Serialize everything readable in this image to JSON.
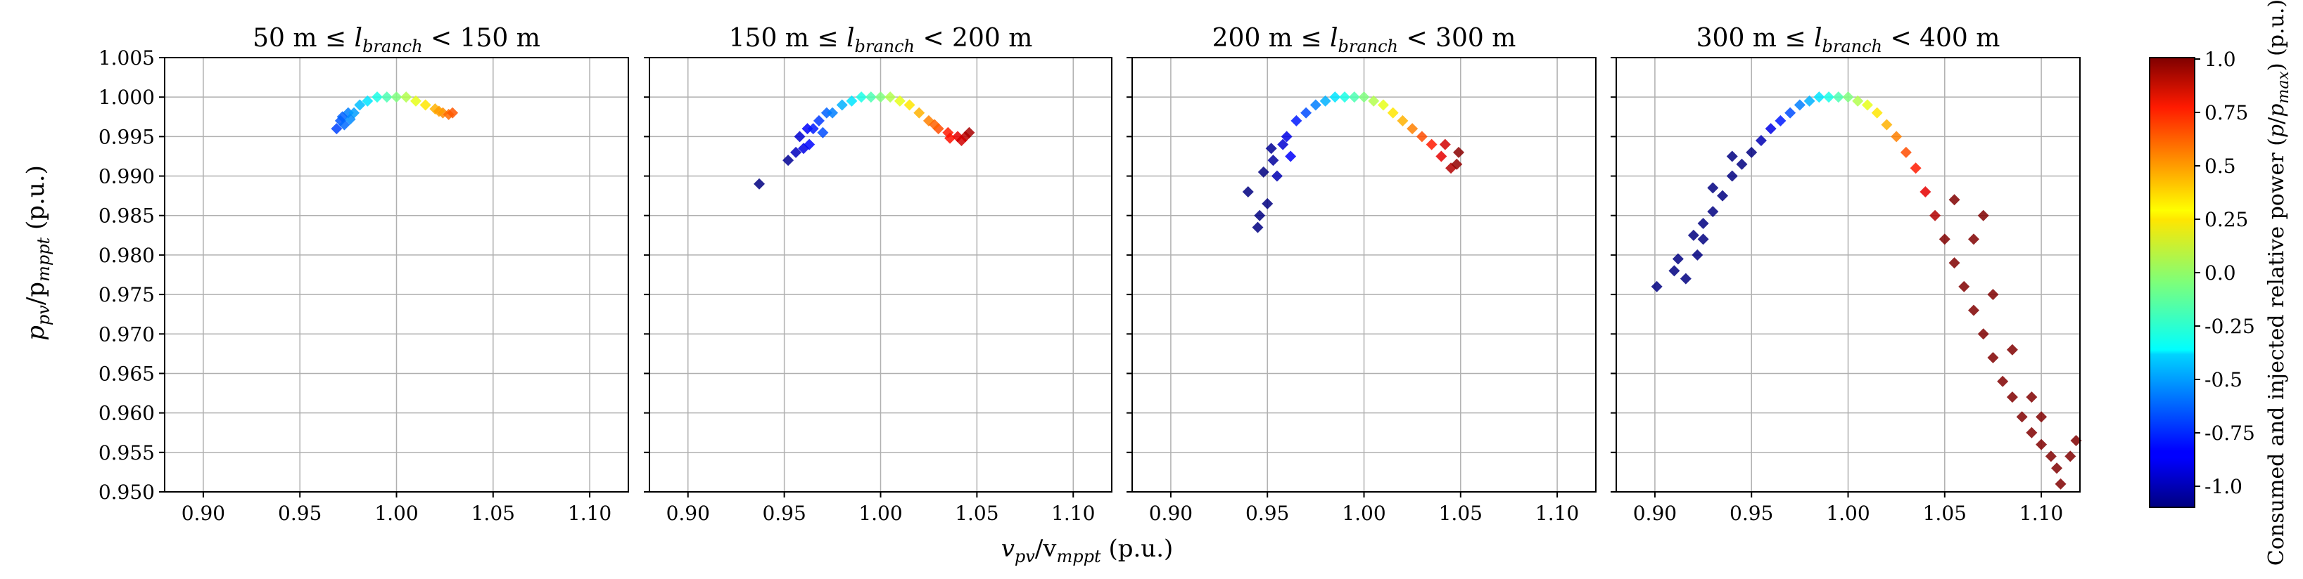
{
  "chart_data": {
    "type": "scatter",
    "xlabel": "v_pv/v_mppt (p.u.)",
    "ylabel": "p_pv/p_mppt (p.u.)",
    "xlim": [
      0.88,
      1.12
    ],
    "ylim": [
      0.95,
      1.005
    ],
    "x_ticks": [
      "0.90",
      "0.95",
      "1.00",
      "1.05",
      "1.10"
    ],
    "x_tick_values": [
      0.9,
      0.95,
      1.0,
      1.05,
      1.1
    ],
    "y_ticks": [
      "1.005",
      "1.000",
      "0.995",
      "0.990",
      "0.985",
      "0.980",
      "0.975",
      "0.970",
      "0.965",
      "0.960",
      "0.955",
      "0.950"
    ],
    "y_tick_values": [
      1.005,
      1.0,
      0.995,
      0.99,
      0.985,
      0.98,
      0.975,
      0.97,
      0.965,
      0.96,
      0.955,
      0.95
    ],
    "grid": true,
    "marker": "diamond",
    "panels": [
      {
        "title": "50 m ≤ l_branch < 150 m",
        "title_pre": "50 m ≤ ",
        "title_post": " < 150 m",
        "points": [
          [
            0.969,
            0.996
          ],
          [
            0.971,
            0.997
          ],
          [
            0.973,
            0.9965
          ],
          [
            0.975,
            0.998
          ],
          [
            0.978,
            0.998
          ],
          [
            0.981,
            0.999
          ],
          [
            0.985,
            0.9995
          ],
          [
            0.99,
            1.0
          ],
          [
            0.995,
            1.0
          ],
          [
            1.0,
            1.0
          ],
          [
            1.005,
            1.0
          ],
          [
            1.01,
            0.9995
          ],
          [
            1.015,
            0.999
          ],
          [
            1.02,
            0.9985
          ],
          [
            1.024,
            0.998
          ],
          [
            1.027,
            0.9978
          ],
          [
            1.029,
            0.998
          ],
          [
            0.972,
            0.9975
          ],
          [
            0.976,
            0.9972
          ],
          [
            1.022,
            0.9982
          ]
        ]
      },
      {
        "title": "150 m ≤ l_branch < 200 m",
        "title_pre": "150 m ≤ ",
        "title_post": " < 200 m",
        "points": [
          [
            0.937,
            0.989
          ],
          [
            0.952,
            0.992
          ],
          [
            0.956,
            0.993
          ],
          [
            0.958,
            0.995
          ],
          [
            0.96,
            0.9935
          ],
          [
            0.962,
            0.996
          ],
          [
            0.965,
            0.996
          ],
          [
            0.968,
            0.997
          ],
          [
            0.972,
            0.998
          ],
          [
            0.975,
            0.998
          ],
          [
            0.98,
            0.999
          ],
          [
            0.985,
            0.9995
          ],
          [
            0.99,
            1.0
          ],
          [
            0.995,
            1.0
          ],
          [
            1.0,
            1.0
          ],
          [
            1.005,
            1.0
          ],
          [
            1.01,
            0.9995
          ],
          [
            1.015,
            0.999
          ],
          [
            1.02,
            0.998
          ],
          [
            1.025,
            0.997
          ],
          [
            1.03,
            0.996
          ],
          [
            1.035,
            0.9955
          ],
          [
            1.04,
            0.995
          ],
          [
            1.044,
            0.995
          ],
          [
            1.046,
            0.9955
          ],
          [
            0.963,
            0.994
          ],
          [
            0.97,
            0.9955
          ],
          [
            1.028,
            0.9965
          ],
          [
            1.036,
            0.9948
          ],
          [
            1.042,
            0.9945
          ]
        ]
      },
      {
        "title": "200 m ≤ l_branch < 300 m",
        "title_pre": "200 m ≤ ",
        "title_post": " < 300 m",
        "points": [
          [
            0.94,
            0.988
          ],
          [
            0.945,
            0.9835
          ],
          [
            0.946,
            0.985
          ],
          [
            0.948,
            0.9905
          ],
          [
            0.95,
            0.9865
          ],
          [
            0.953,
            0.992
          ],
          [
            0.955,
            0.99
          ],
          [
            0.958,
            0.994
          ],
          [
            0.96,
            0.995
          ],
          [
            0.965,
            0.997
          ],
          [
            0.97,
            0.998
          ],
          [
            0.975,
            0.999
          ],
          [
            0.98,
            0.9995
          ],
          [
            0.985,
            1.0
          ],
          [
            0.99,
            1.0
          ],
          [
            0.995,
            1.0
          ],
          [
            1.0,
            1.0
          ],
          [
            1.005,
            0.9995
          ],
          [
            1.01,
            0.999
          ],
          [
            1.015,
            0.998
          ],
          [
            1.02,
            0.997
          ],
          [
            1.025,
            0.996
          ],
          [
            1.03,
            0.995
          ],
          [
            1.035,
            0.994
          ],
          [
            1.04,
            0.9925
          ],
          [
            1.045,
            0.991
          ],
          [
            1.048,
            0.9915
          ],
          [
            1.049,
            0.993
          ],
          [
            0.952,
            0.9935
          ],
          [
            0.962,
            0.9925
          ],
          [
            1.042,
            0.994
          ]
        ]
      },
      {
        "title": "300 m ≤ l_branch < 400 m",
        "title_pre": "300 m ≤ ",
        "title_post": " < 400 m",
        "points": [
          [
            0.901,
            0.976
          ],
          [
            0.91,
            0.978
          ],
          [
            0.912,
            0.9795
          ],
          [
            0.916,
            0.977
          ],
          [
            0.92,
            0.9825
          ],
          [
            0.922,
            0.98
          ],
          [
            0.925,
            0.984
          ],
          [
            0.93,
            0.9855
          ],
          [
            0.935,
            0.9875
          ],
          [
            0.94,
            0.99
          ],
          [
            0.945,
            0.9915
          ],
          [
            0.95,
            0.993
          ],
          [
            0.955,
            0.9945
          ],
          [
            0.96,
            0.996
          ],
          [
            0.965,
            0.997
          ],
          [
            0.97,
            0.998
          ],
          [
            0.975,
            0.999
          ],
          [
            0.98,
            0.9995
          ],
          [
            0.985,
            1.0
          ],
          [
            0.99,
            1.0
          ],
          [
            0.995,
            1.0
          ],
          [
            1.0,
            1.0
          ],
          [
            1.005,
            0.9995
          ],
          [
            1.01,
            0.999
          ],
          [
            1.015,
            0.998
          ],
          [
            1.02,
            0.9965
          ],
          [
            1.025,
            0.995
          ],
          [
            1.03,
            0.993
          ],
          [
            1.035,
            0.991
          ],
          [
            1.04,
            0.988
          ],
          [
            1.045,
            0.985
          ],
          [
            1.05,
            0.982
          ],
          [
            1.055,
            0.979
          ],
          [
            1.06,
            0.976
          ],
          [
            1.065,
            0.973
          ],
          [
            1.07,
            0.97
          ],
          [
            1.075,
            0.967
          ],
          [
            1.08,
            0.964
          ],
          [
            1.085,
            0.962
          ],
          [
            1.09,
            0.9595
          ],
          [
            1.095,
            0.9575
          ],
          [
            1.1,
            0.956
          ],
          [
            1.105,
            0.9545
          ],
          [
            1.108,
            0.953
          ],
          [
            1.11,
            0.951
          ],
          [
            1.115,
            0.9545
          ],
          [
            1.118,
            0.9565
          ],
          [
            1.07,
            0.985
          ],
          [
            1.065,
            0.982
          ],
          [
            1.075,
            0.975
          ],
          [
            1.085,
            0.968
          ],
          [
            1.095,
            0.962
          ],
          [
            1.1,
            0.9595
          ],
          [
            1.055,
            0.987
          ],
          [
            0.93,
            0.9885
          ],
          [
            0.94,
            0.9925
          ],
          [
            0.925,
            0.982
          ]
        ]
      }
    ],
    "colorbar": {
      "label": "Consumed and injected relative power (p/p_max) (p.u.)",
      "range": [
        -1.0,
        1.0
      ],
      "tick_labels": [
        "1.0",
        "0.75",
        "0.5",
        "0.25",
        "0.0",
        "-0.25",
        "-0.5",
        "-0.75",
        "-1.0"
      ],
      "tick_values": [
        1.0,
        0.75,
        0.5,
        0.25,
        0.0,
        -0.25,
        -0.5,
        -0.75,
        -1.0
      ],
      "colormap": "jet"
    }
  },
  "labels": {
    "xlabel_main": "v",
    "xlabel_sub1": "pv",
    "xlabel_mid": "/v",
    "xlabel_sub2": "mppt",
    "xlabel_tail": " (p.u.)",
    "ylabel_main": "p",
    "ylabel_sub1": "pv",
    "ylabel_mid": "/p",
    "ylabel_sub2": "mppt",
    "ylabel_tail": " (p.u.)",
    "title_var": "l",
    "title_sub": "branch",
    "cb_pre": "Consumed and injected relative power (",
    "cb_p": "p",
    "cb_slash": "/",
    "cb_p2": "p",
    "cb_sub": "max",
    "cb_post": ") (p.u.)"
  }
}
